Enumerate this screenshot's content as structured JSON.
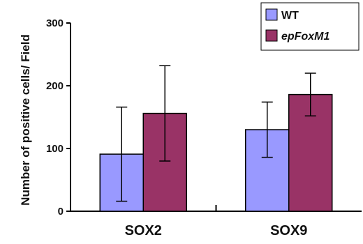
{
  "chart_data": {
    "type": "bar",
    "categories": [
      "SOX2",
      "SOX9"
    ],
    "series": [
      {
        "name": "WT",
        "values": [
          91,
          130
        ],
        "error": [
          75,
          44
        ],
        "color": "#9999ff"
      },
      {
        "name": "epFoxM1",
        "values": [
          156,
          186
        ],
        "error": [
          76,
          34
        ],
        "color": "#993366"
      }
    ],
    "title": "",
    "xlabel": "",
    "ylabel": "Number of positive cells/ Field",
    "ylim": [
      0,
      300
    ],
    "yticks": [
      0,
      100,
      200,
      300
    ],
    "grid": false,
    "legend_position": "top-right",
    "error_bars": true
  }
}
